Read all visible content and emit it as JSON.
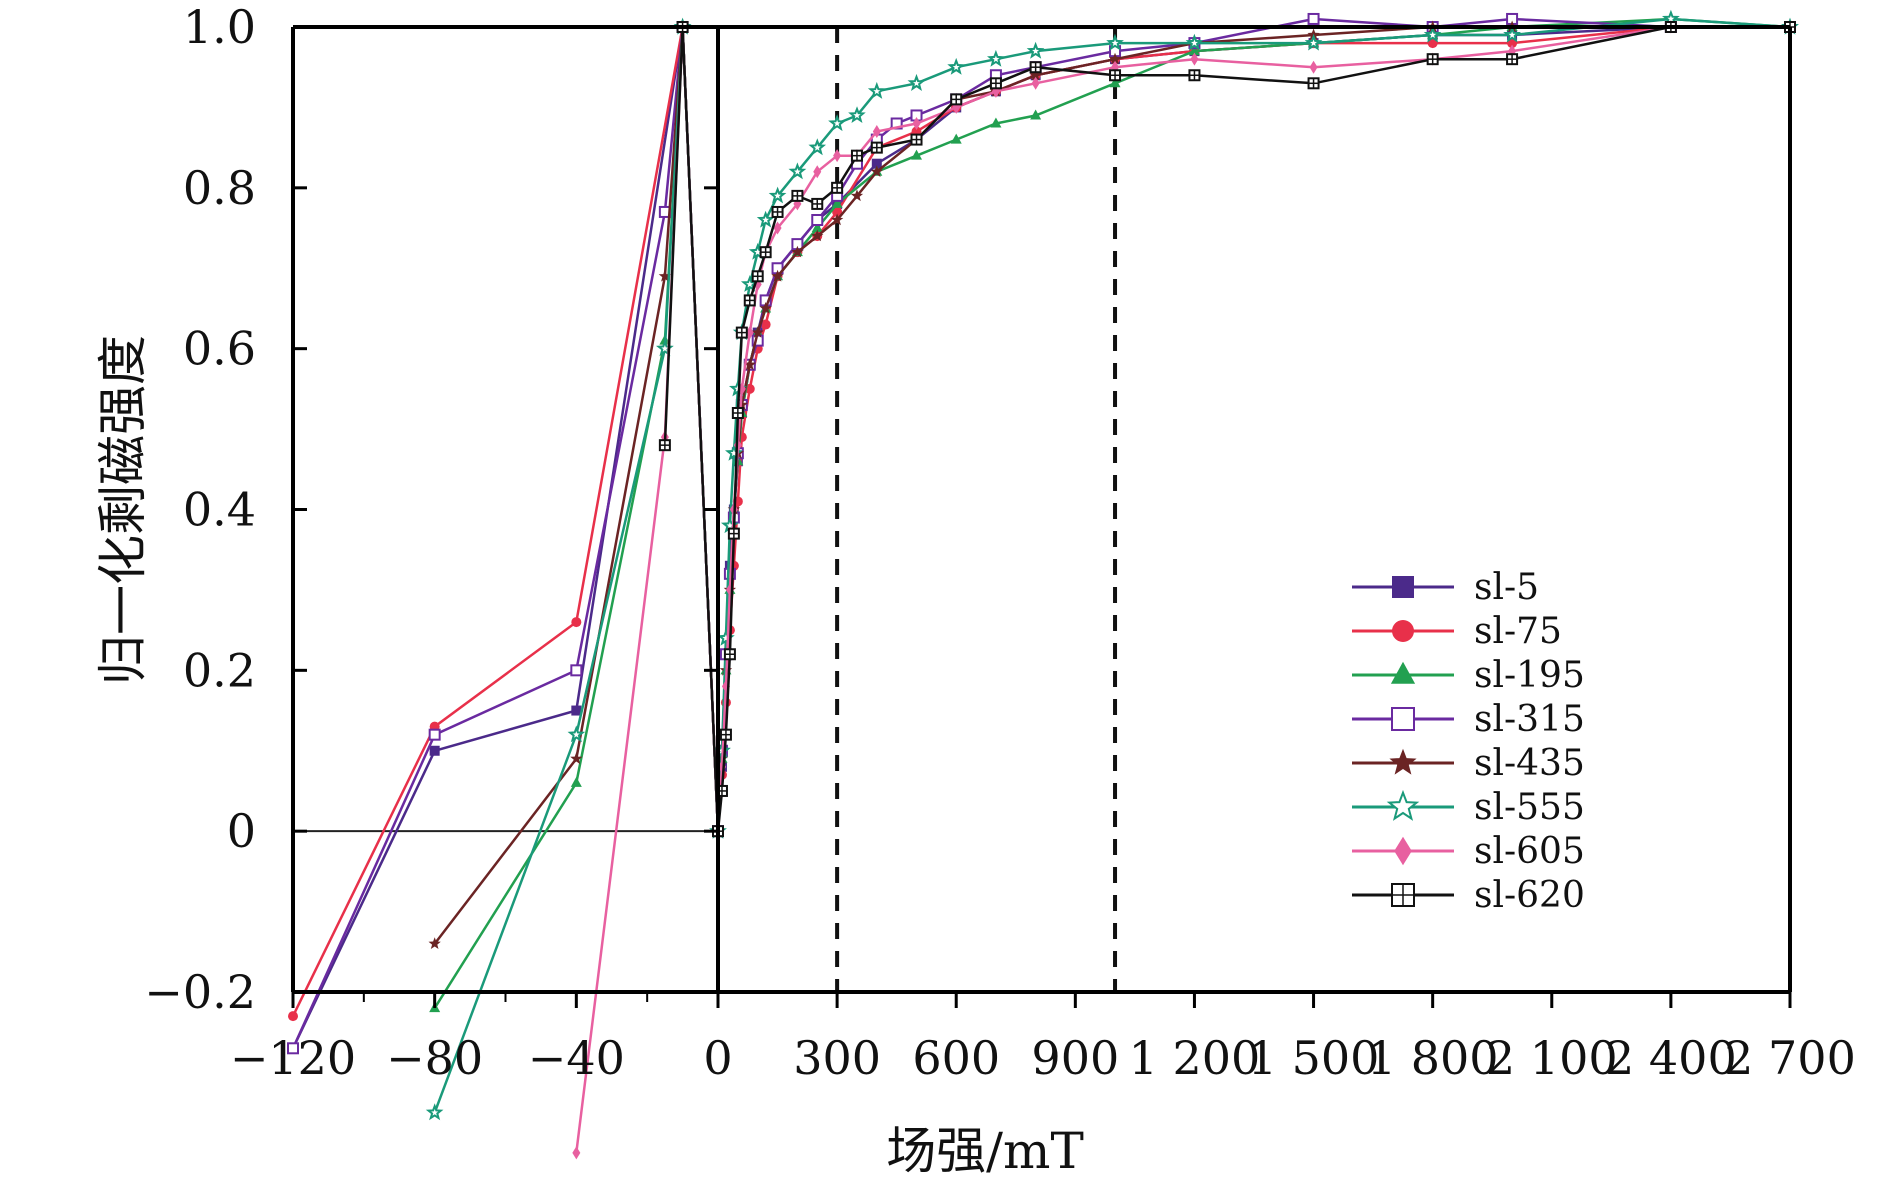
{
  "chart_data": {
    "type": "line",
    "title": "",
    "xlabel": "场强/mT",
    "ylabel": "归一化剩磁强度",
    "legend_position": "lower-right inside plot",
    "grid": false,
    "x_axis_note": "piecewise scale: -120 to 0 (step 40) on left segment, 0 to 2700 (step 300) on right segment",
    "x_tick_labels": [
      "−120",
      "−80",
      "−40",
      "0",
      "300",
      "600",
      "900",
      "1 200",
      "1 500",
      "1 800",
      "2 100",
      "2 400",
      "2 700"
    ],
    "x_tick_values": [
      -120,
      -80,
      -40,
      0,
      300,
      600,
      900,
      1200,
      1500,
      1800,
      2100,
      2400,
      2700
    ],
    "y_tick_labels": [
      "−0.2",
      "0",
      "0.2",
      "0.4",
      "0.6",
      "0.8",
      "1.0"
    ],
    "y_tick_values": [
      -0.2,
      0,
      0.2,
      0.4,
      0.6,
      0.8,
      1.0
    ],
    "ylim": [
      -0.2,
      1.0
    ],
    "reference_lines": {
      "vertical_dashed_x": [
        300,
        1000
      ],
      "horizontal_y": 0
    },
    "series": [
      {
        "name": "sl-5",
        "color": "#4b2a8a",
        "marker": "filled-square",
        "x": [
          -120,
          -80,
          -40,
          -10,
          0,
          10,
          20,
          30,
          40,
          50,
          60,
          80,
          100,
          120,
          150,
          200,
          250,
          300,
          400,
          500,
          600,
          700,
          800,
          1000,
          1200,
          1500,
          1800,
          2000,
          2400,
          2700
        ],
        "y": [
          -0.27,
          0.1,
          0.15,
          1.0,
          0.0,
          0.08,
          0.22,
          0.33,
          0.4,
          0.46,
          0.52,
          0.58,
          0.62,
          0.66,
          0.7,
          0.73,
          0.76,
          0.78,
          0.83,
          0.86,
          0.9,
          0.92,
          0.94,
          0.96,
          0.97,
          0.98,
          0.99,
          0.99,
          1.0,
          1.0
        ]
      },
      {
        "name": "sl-75",
        "color": "#e8304a",
        "marker": "filled-circle",
        "x": [
          -120,
          -80,
          -40,
          -10,
          0,
          10,
          20,
          30,
          40,
          50,
          60,
          80,
          100,
          120,
          150,
          200,
          250,
          300,
          400,
          500,
          600,
          700,
          800,
          1000,
          1200,
          1500,
          1800,
          2000,
          2400,
          2700
        ],
        "y": [
          -0.23,
          0.13,
          0.26,
          1.0,
          0.0,
          0.07,
          0.16,
          0.25,
          0.33,
          0.41,
          0.49,
          0.55,
          0.6,
          0.63,
          0.69,
          0.72,
          0.74,
          0.77,
          0.85,
          0.87,
          0.9,
          0.92,
          0.94,
          0.96,
          0.97,
          0.98,
          0.98,
          0.98,
          1.0,
          1.0
        ]
      },
      {
        "name": "sl-195",
        "color": "#22a050",
        "marker": "filled-triangle",
        "x": [
          -80,
          -40,
          -15,
          -10,
          0,
          10,
          20,
          30,
          40,
          50,
          60,
          80,
          100,
          120,
          150,
          200,
          250,
          300,
          400,
          500,
          600,
          700,
          800,
          1000,
          1200,
          1500,
          1800,
          2000,
          2400,
          2700
        ],
        "y": [
          -0.22,
          0.06,
          0.61,
          1.0,
          0.0,
          0.09,
          0.2,
          0.3,
          0.4,
          0.46,
          0.52,
          0.58,
          0.62,
          0.65,
          0.69,
          0.72,
          0.75,
          0.78,
          0.82,
          0.84,
          0.86,
          0.88,
          0.89,
          0.93,
          0.97,
          0.98,
          0.99,
          1.0,
          1.01,
          1.0
        ]
      },
      {
        "name": "sl-315",
        "color": "#6a2aa0",
        "marker": "open-square",
        "x": [
          -120,
          -80,
          -40,
          -15,
          -10,
          0,
          10,
          20,
          30,
          40,
          50,
          60,
          80,
          100,
          120,
          150,
          200,
          250,
          300,
          350,
          400,
          450,
          500,
          600,
          700,
          800,
          1000,
          1200,
          1500,
          1800,
          2000,
          2400,
          2700
        ],
        "y": [
          -0.27,
          0.12,
          0.2,
          0.77,
          1.0,
          0.0,
          0.1,
          0.22,
          0.32,
          0.39,
          0.47,
          0.53,
          0.58,
          0.61,
          0.66,
          0.7,
          0.73,
          0.76,
          0.79,
          0.83,
          0.86,
          0.88,
          0.89,
          0.91,
          0.94,
          0.95,
          0.97,
          0.98,
          1.01,
          1.0,
          1.01,
          1.0,
          1.0
        ]
      },
      {
        "name": "sl-435",
        "color": "#6b2424",
        "marker": "filled-star",
        "x": [
          -80,
          -40,
          -15,
          -10,
          0,
          10,
          20,
          30,
          40,
          50,
          60,
          80,
          100,
          120,
          150,
          200,
          250,
          300,
          350,
          400,
          500,
          600,
          700,
          800,
          1000,
          1200,
          1500,
          1800,
          2000,
          2400,
          2700
        ],
        "y": [
          -0.14,
          0.09,
          0.69,
          1.0,
          0.0,
          0.09,
          0.2,
          0.3,
          0.4,
          0.47,
          0.53,
          0.58,
          0.62,
          0.65,
          0.69,
          0.72,
          0.74,
          0.76,
          0.79,
          0.82,
          0.86,
          0.91,
          0.92,
          0.94,
          0.96,
          0.98,
          0.99,
          1.0,
          1.0,
          1.0,
          1.0
        ]
      },
      {
        "name": "sl-555",
        "color": "#1a9a7a",
        "marker": "open-star",
        "x": [
          -80,
          -40,
          -15,
          -10,
          0,
          10,
          20,
          30,
          40,
          50,
          60,
          80,
          100,
          120,
          150,
          200,
          250,
          300,
          350,
          400,
          500,
          600,
          700,
          800,
          1000,
          1200,
          1500,
          1800,
          2000,
          2400,
          2700
        ],
        "y": [
          -0.35,
          0.12,
          0.6,
          1.0,
          0.0,
          0.1,
          0.24,
          0.38,
          0.47,
          0.55,
          0.62,
          0.68,
          0.72,
          0.76,
          0.79,
          0.82,
          0.85,
          0.88,
          0.89,
          0.92,
          0.93,
          0.95,
          0.96,
          0.97,
          0.98,
          0.98,
          0.98,
          0.99,
          0.99,
          1.01,
          1.0
        ]
      },
      {
        "name": "sl-605",
        "color": "#e860a0",
        "marker": "filled-diamond",
        "x": [
          -40,
          -15,
          -10,
          0,
          10,
          20,
          30,
          40,
          50,
          60,
          80,
          100,
          120,
          150,
          200,
          250,
          300,
          350,
          400,
          500,
          600,
          700,
          800,
          1000,
          1200,
          1500,
          1800,
          2000,
          2400,
          2700
        ],
        "y": [
          -0.4,
          0.49,
          1.0,
          0.0,
          0.08,
          0.18,
          0.3,
          0.4,
          0.48,
          0.55,
          0.62,
          0.68,
          0.72,
          0.75,
          0.78,
          0.82,
          0.84,
          0.84,
          0.87,
          0.88,
          0.9,
          0.92,
          0.93,
          0.95,
          0.96,
          0.95,
          0.96,
          0.97,
          1.0,
          1.0
        ]
      },
      {
        "name": "sl-620",
        "color": "#111111",
        "marker": "open-circle-cross",
        "x": [
          -15,
          -10,
          0,
          10,
          20,
          30,
          40,
          50,
          60,
          80,
          100,
          120,
          150,
          200,
          250,
          300,
          350,
          400,
          500,
          600,
          700,
          800,
          1000,
          1200,
          1500,
          1800,
          2000,
          2400,
          2700
        ],
        "y": [
          0.48,
          1.0,
          0.0,
          0.05,
          0.12,
          0.22,
          0.37,
          0.52,
          0.62,
          0.66,
          0.69,
          0.72,
          0.77,
          0.79,
          0.78,
          0.8,
          0.84,
          0.85,
          0.86,
          0.91,
          0.93,
          0.95,
          0.94,
          0.94,
          0.93,
          0.96,
          0.96,
          1.0,
          1.0
        ]
      }
    ]
  }
}
